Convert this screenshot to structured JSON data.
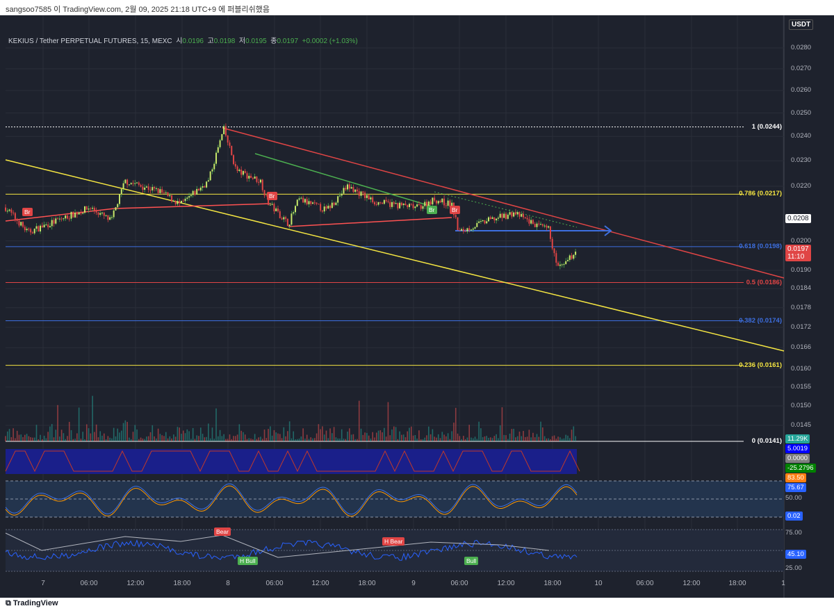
{
  "publish_line": "sangsoo7585 이 TradingView.com, 2월 09, 2025 21:18 UTC+9 에 퍼블리쉬했음",
  "legend": {
    "symbol": "KEKIUS / Tether PERPETUAL FUTURES, 15, MEXC",
    "open_label": "시",
    "open": "0.0196",
    "high_label": "고",
    "high": "0.0198",
    "low_label": "저",
    "low": "0.0195",
    "close_label": "종",
    "close": "0.0197",
    "change": "+0.0002 (+1.03%)"
  },
  "currency": "USDT",
  "price_ticks": [
    "0.0280",
    "0.0270",
    "0.0260",
    "0.0250",
    "0.0240",
    "0.0230",
    "0.0220",
    "0.0200",
    "0.0190",
    "0.0184",
    "0.0178",
    "0.0172",
    "0.0166",
    "0.0160",
    "0.0155",
    "0.0150",
    "0.0145"
  ],
  "fib_levels": [
    {
      "label": "1 (0.0244)",
      "price": 0.0244,
      "color": "#ffffff"
    },
    {
      "label": "0.786 (0.0217)",
      "price": 0.0217,
      "color": "#f5e642"
    },
    {
      "label": "0.618 (0.0198)",
      "price": 0.0198,
      "color": "#3d6fe0"
    },
    {
      "label": "0.5 (0.0186)",
      "price": 0.0186,
      "color": "#e04545"
    },
    {
      "label": "0.382 (0.0174)",
      "price": 0.0174,
      "color": "#3d6fe0"
    },
    {
      "label": "0.236 (0.0161)",
      "price": 0.0161,
      "color": "#f5e642"
    },
    {
      "label": "0 (0.0141)",
      "price": 0.0141,
      "color": "#ffffff"
    }
  ],
  "price_boxes": {
    "line": "0.0208",
    "last": "0.0197",
    "countdown": "11:10"
  },
  "indicator_values": [
    "11.29K",
    "5.0019",
    "0.0000",
    "-25.2796",
    "83.50",
    "75.67",
    "50.00",
    "0.02",
    "75.00",
    "45.10",
    "25.00"
  ],
  "time_ticks": [
    "7",
    "06:00",
    "12:00",
    "18:00",
    "8",
    "06:00",
    "12:00",
    "18:00",
    "9",
    "06:00",
    "12:00",
    "18:00",
    "10",
    "06:00",
    "12:00",
    "18:00",
    "1"
  ],
  "badges": [
    "Br",
    "Br",
    "Br",
    "Br"
  ],
  "signals": [
    "Bear",
    "H Bull",
    "H Bear",
    "Bull"
  ],
  "footer": "TradingView",
  "price_path": [
    [
      8,
      0.0212
    ],
    [
      40,
      0.0203
    ],
    [
      130,
      0.0212
    ],
    [
      160,
      0.0207
    ],
    [
      180,
      0.0222
    ],
    [
      230,
      0.0218
    ],
    [
      260,
      0.0213
    ],
    [
      300,
      0.0222
    ],
    [
      322,
      0.0243
    ],
    [
      340,
      0.0226
    ],
    [
      375,
      0.0222
    ],
    [
      385,
      0.0214
    ],
    [
      415,
      0.0206
    ],
    [
      430,
      0.0215
    ],
    [
      470,
      0.0211
    ],
    [
      500,
      0.022
    ],
    [
      540,
      0.0214
    ],
    [
      600,
      0.0212
    ],
    [
      625,
      0.0215
    ],
    [
      650,
      0.0213
    ],
    [
      660,
      0.0203
    ],
    [
      700,
      0.0207
    ],
    [
      740,
      0.021
    ],
    [
      775,
      0.0205
    ],
    [
      790,
      0.0204
    ],
    [
      800,
      0.0192
    ],
    [
      810,
      0.0191
    ],
    [
      830,
      0.0197
    ]
  ]
}
